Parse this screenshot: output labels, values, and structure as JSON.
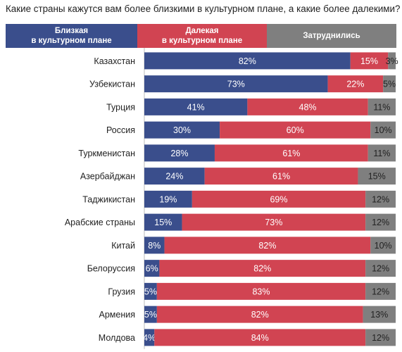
{
  "chart_data": {
    "type": "bar",
    "orientation": "horizontal",
    "stacked": true,
    "title": "Какие страны кажутся вам более близкими в культурном плане, а какие более далекими?",
    "categories": [
      "Казахстан",
      "Узбекистан",
      "Турция",
      "Россия",
      "Туркменистан",
      "Азербайджан",
      "Таджикистан",
      "Арабские страны",
      "Китай",
      "Белоруссия",
      "Грузия",
      "Армения",
      "Молдова"
    ],
    "series": [
      {
        "name": "Близкая в культурном плане",
        "name_lines": [
          "Близкая",
          "в культурном плане"
        ],
        "color": "#3a4e8c",
        "values": [
          82,
          73,
          41,
          30,
          28,
          24,
          19,
          15,
          8,
          6,
          5,
          5,
          4
        ]
      },
      {
        "name": "Далекая в культурном плане",
        "name_lines": [
          "Далекая",
          "в культурном плане"
        ],
        "color": "#d14452",
        "values": [
          15,
          22,
          48,
          60,
          61,
          61,
          69,
          73,
          82,
          82,
          83,
          82,
          84
        ]
      },
      {
        "name": "Затруднились",
        "name_lines": [
          "Затруднились"
        ],
        "color": "#7f7f7f",
        "values": [
          3,
          5,
          11,
          10,
          11,
          15,
          12,
          12,
          10,
          12,
          12,
          13,
          12
        ]
      }
    ],
    "value_suffix": "%",
    "xlim": [
      0,
      100
    ],
    "legend_position": "top",
    "grid": false
  }
}
